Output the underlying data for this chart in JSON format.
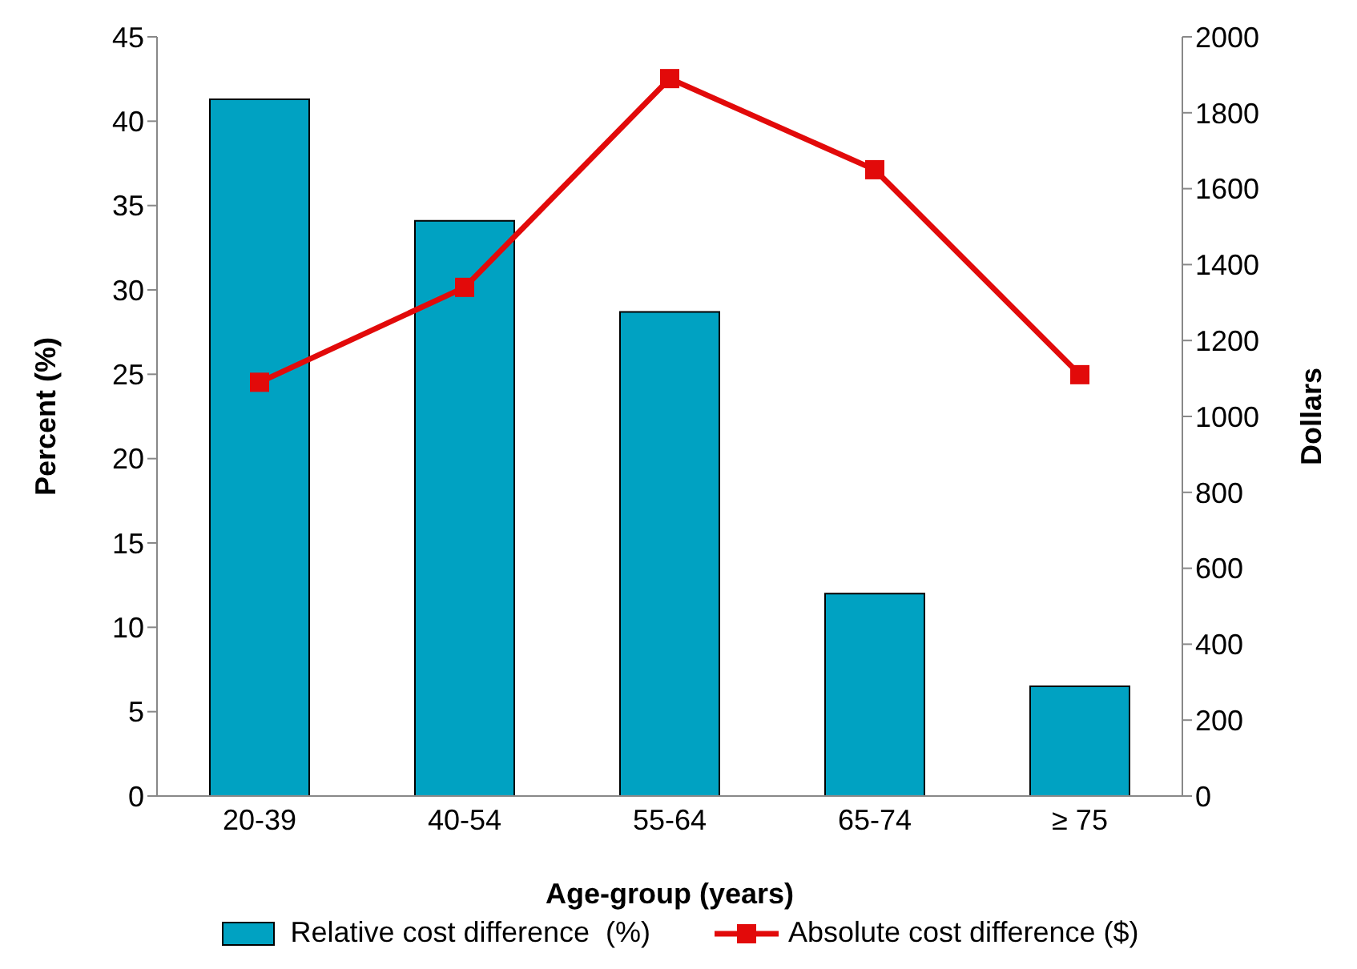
{
  "chart_data": {
    "type": "bar",
    "xlabel": "Age-group (years)",
    "ylabel": "Percent (%)",
    "y2label": "Dollars",
    "categories": [
      "20-39",
      "40-54",
      "55-64",
      "65-74",
      "≥ 75"
    ],
    "series": [
      {
        "name": "Relative cost difference  (%)",
        "color": "#00a2c2",
        "values": [
          41.3,
          34.1,
          28.7,
          12.0,
          6.5
        ]
      },
      {
        "name": "Absolute cost difference ($)",
        "type": "line",
        "axis": "y2",
        "color": "#e20a0a",
        "marker": "square",
        "values": [
          1090,
          1340,
          1890,
          1650,
          1110
        ]
      }
    ],
    "ylim": [
      0,
      45
    ],
    "yticks": [
      0,
      5,
      10,
      15,
      20,
      25,
      30,
      35,
      40,
      45
    ],
    "y2lim": [
      0,
      2000
    ],
    "y2ticks": [
      0,
      200,
      400,
      600,
      800,
      1000,
      1200,
      1400,
      1600,
      1800,
      2000
    ],
    "legend": "bottom"
  }
}
